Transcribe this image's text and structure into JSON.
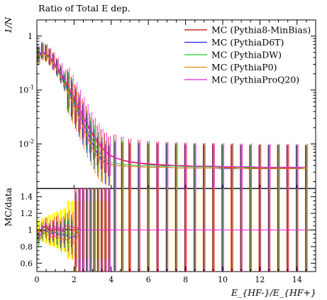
{
  "chart_data": [
    {
      "type": "line",
      "title": "Ratio of Total E dep.",
      "ylabel": "1/N",
      "xlabel": "",
      "yscale": "log",
      "xlim": [
        0,
        15
      ],
      "ylim": [
        0.0015,
        2
      ],
      "yticks": [
        1,
        0.1,
        0.01
      ],
      "ytick_labels": [
        "1",
        "10^-1",
        "10^-2"
      ],
      "legend_position": "top-right",
      "grid": false,
      "x": [
        0.1,
        0.3,
        0.5,
        0.7,
        0.9,
        1.1,
        1.3,
        1.5,
        1.7,
        1.9,
        2.1,
        2.3,
        2.5,
        2.7,
        2.9,
        3.1,
        3.3,
        3.5,
        3.7,
        3.9,
        4.2,
        4.6,
        5.0,
        5.5,
        6.0,
        6.5,
        7.0,
        7.5,
        8.0,
        8.5,
        9.0,
        9.5,
        10.0,
        10.5,
        11.0,
        11.5,
        12.0,
        12.5,
        13.0,
        13.5,
        14.0,
        14.5
      ],
      "series": [
        {
          "name": "MC (Pythia8-MinBias)",
          "color": "#cc0000",
          "values": [
            0.42,
            0.5,
            0.47,
            0.4,
            0.33,
            0.26,
            0.2,
            0.15,
            0.11,
            0.08,
            0.058,
            0.042,
            0.031,
            0.023,
            0.017,
            0.013,
            0.01,
            0.0085,
            0.0072,
            0.0062,
            0.0055,
            0.005,
            0.0046,
            0.0044,
            0.0042,
            0.0041,
            0.004,
            0.0039,
            0.0039,
            0.0038,
            0.0038,
            0.0038,
            0.0037,
            0.0037,
            0.0037,
            0.0036,
            0.0036,
            0.0036,
            0.0036,
            0.0036,
            0.0036,
            0.0035
          ]
        },
        {
          "name": "MC (PythiaD6T)",
          "color": "#2222ee",
          "values": [
            0.45,
            0.52,
            0.46,
            0.38,
            0.31,
            0.24,
            0.18,
            0.13,
            0.095,
            0.068,
            0.048,
            0.034,
            0.024,
            0.017,
            0.012,
            0.0085,
            0.0062,
            0.005,
            0.0045,
            0.0042,
            0.004,
            0.0039,
            0.0038,
            0.0038,
            0.0037,
            0.0037,
            0.0037,
            0.0036,
            0.0036,
            0.0036,
            0.0036,
            0.0036,
            0.0035,
            0.0035,
            0.0035,
            0.0035,
            0.0035,
            0.0035,
            0.0035,
            0.0035,
            0.0035,
            0.0035
          ]
        },
        {
          "name": "MC (PythiaDW)",
          "color": "#22cc22",
          "values": [
            0.38,
            0.48,
            0.45,
            0.39,
            0.32,
            0.25,
            0.19,
            0.14,
            0.1,
            0.074,
            0.053,
            0.038,
            0.027,
            0.019,
            0.014,
            0.01,
            0.0075,
            0.006,
            0.0052,
            0.0047,
            0.0044,
            0.0042,
            0.0041,
            0.004,
            0.004,
            0.0039,
            0.0039,
            0.0039,
            0.0038,
            0.0038,
            0.0038,
            0.0038,
            0.0038,
            0.0038,
            0.0037,
            0.0037,
            0.0037,
            0.0037,
            0.0037,
            0.0037,
            0.0037,
            0.0037
          ]
        },
        {
          "name": "MC (PythiaP0)",
          "color": "#ee8800",
          "values": [
            0.4,
            0.47,
            0.44,
            0.37,
            0.3,
            0.23,
            0.17,
            0.12,
            0.085,
            0.06,
            0.042,
            0.029,
            0.02,
            0.014,
            0.0098,
            0.007,
            0.0055,
            0.0047,
            0.0043,
            0.0041,
            0.004,
            0.0039,
            0.0038,
            0.0038,
            0.0037,
            0.0037,
            0.0037,
            0.0036,
            0.0036,
            0.0036,
            0.0036,
            0.0036,
            0.0036,
            0.0036,
            0.0035,
            0.0035,
            0.0035,
            0.0035,
            0.0035,
            0.0035,
            0.0035,
            0.0035
          ]
        },
        {
          "name": "MC (PythiaProQ20)",
          "color": "#ee22dd",
          "values": [
            0.43,
            0.51,
            0.48,
            0.41,
            0.34,
            0.27,
            0.21,
            0.16,
            0.12,
            0.088,
            0.064,
            0.046,
            0.034,
            0.025,
            0.018,
            0.014,
            0.011,
            0.0088,
            0.0074,
            0.0064,
            0.0056,
            0.0051,
            0.0047,
            0.0045,
            0.0043,
            0.0042,
            0.0041,
            0.004,
            0.004,
            0.0039,
            0.0039,
            0.0039,
            0.0038,
            0.0038,
            0.0038,
            0.0038,
            0.0037,
            0.0037,
            0.0037,
            0.0037,
            0.0037,
            0.0037
          ]
        }
      ]
    },
    {
      "type": "line",
      "title": "",
      "ylabel": "MC/data",
      "xlabel": "E_{HF-}/E_{HF+}",
      "xlim": [
        0,
        15
      ],
      "ylim": [
        0.5,
        1.5
      ],
      "xticks": [
        0,
        2,
        4,
        6,
        8,
        10,
        12,
        14
      ],
      "xtick_labels": [
        "0",
        "2",
        "4",
        "6",
        "8",
        "10",
        "12",
        "14"
      ],
      "yticks": [
        0.6,
        0.8,
        1.0,
        1.2,
        1.4
      ],
      "ytick_labels": [
        "0.6",
        "0.8",
        "1",
        "1.2",
        "1.4"
      ],
      "reference_line": 1.0,
      "band_color": "#ffff00",
      "grid": false,
      "x": [
        0.1,
        0.3,
        0.5,
        0.7,
        0.9,
        1.1,
        1.3,
        1.5,
        1.7,
        1.9,
        2.1,
        2.3,
        2.5,
        2.7,
        2.9,
        3.1,
        3.3,
        3.5,
        3.7,
        3.9,
        4.2,
        4.6,
        5.0,
        5.5,
        6.0,
        6.5,
        7.0,
        7.5,
        8.0,
        8.5,
        9.0,
        9.5,
        10.0,
        10.5,
        11.0,
        11.5,
        12.0,
        12.5,
        13.0,
        13.5,
        14.0,
        14.5
      ],
      "series": [
        {
          "color": "#cc0000",
          "values": [
            0.95,
            1.02,
            1.05,
            0.98,
            1.0,
            1.03,
            0.97,
            1.0,
            1.02,
            0.99,
            1.01,
            1.0,
            1.0,
            1.0,
            1.0,
            1.0,
            1.0,
            1.0,
            1.0,
            1.0,
            1.0,
            1.0,
            1.0,
            1.0,
            1.0,
            1.0,
            1.0,
            1.0,
            1.0,
            1.0,
            1.0,
            1.0,
            1.0,
            1.0,
            1.0,
            1.0,
            1.0,
            1.0,
            1.0,
            1.0,
            1.0,
            1.0
          ]
        },
        {
          "color": "#2222ee",
          "values": [
            0.9,
            0.98,
            1.0,
            0.95,
            0.97,
            0.96,
            0.93,
            0.95,
            0.92,
            0.9,
            0.94,
            1.0,
            1.0,
            1.0,
            1.0,
            1.0,
            1.0,
            1.0,
            1.0,
            1.0,
            1.0,
            1.0,
            1.0,
            1.0,
            1.0,
            1.0,
            1.0,
            1.0,
            1.0,
            1.0,
            1.0,
            1.0,
            1.0,
            1.0,
            1.0,
            1.0,
            1.0,
            1.0,
            1.0,
            1.0,
            1.0,
            1.0
          ]
        },
        {
          "color": "#22cc22",
          "values": [
            0.85,
            0.95,
            0.98,
            0.96,
            0.99,
            0.97,
            0.95,
            0.97,
            0.95,
            0.94,
            0.96,
            1.0,
            1.0,
            1.0,
            1.0,
            1.0,
            1.0,
            1.0,
            1.0,
            1.0,
            1.0,
            1.0,
            1.0,
            1.0,
            1.0,
            1.0,
            1.0,
            1.0,
            1.0,
            1.0,
            1.0,
            1.0,
            1.0,
            1.0,
            1.0,
            1.0,
            1.0,
            1.0,
            1.0,
            1.0,
            1.0,
            1.0
          ]
        },
        {
          "color": "#ee8800",
          "values": [
            0.88,
            0.94,
            0.96,
            0.92,
            0.93,
            0.92,
            0.88,
            0.9,
            0.86,
            0.84,
            0.86,
            1.0,
            1.0,
            1.0,
            1.0,
            1.0,
            1.0,
            1.0,
            1.0,
            1.0,
            1.0,
            1.0,
            1.0,
            1.0,
            1.0,
            1.0,
            1.0,
            1.0,
            1.0,
            1.0,
            1.0,
            1.0,
            1.0,
            1.0,
            1.0,
            1.0,
            1.0,
            1.0,
            1.0,
            1.0,
            1.0,
            1.0
          ]
        },
        {
          "color": "#ee22dd",
          "values": [
            0.97,
            1.03,
            1.06,
            1.01,
            1.03,
            1.05,
            1.0,
            1.04,
            1.06,
            1.02,
            1.05,
            1.0,
            1.0,
            1.0,
            1.0,
            1.0,
            1.0,
            1.0,
            1.0,
            1.0,
            1.0,
            1.0,
            1.0,
            1.0,
            1.0,
            1.0,
            1.0,
            1.0,
            1.0,
            1.0,
            1.0,
            1.0,
            1.0,
            1.0,
            1.0,
            1.0,
            1.0,
            1.0,
            1.0,
            1.0,
            1.0,
            1.0
          ]
        }
      ]
    }
  ]
}
